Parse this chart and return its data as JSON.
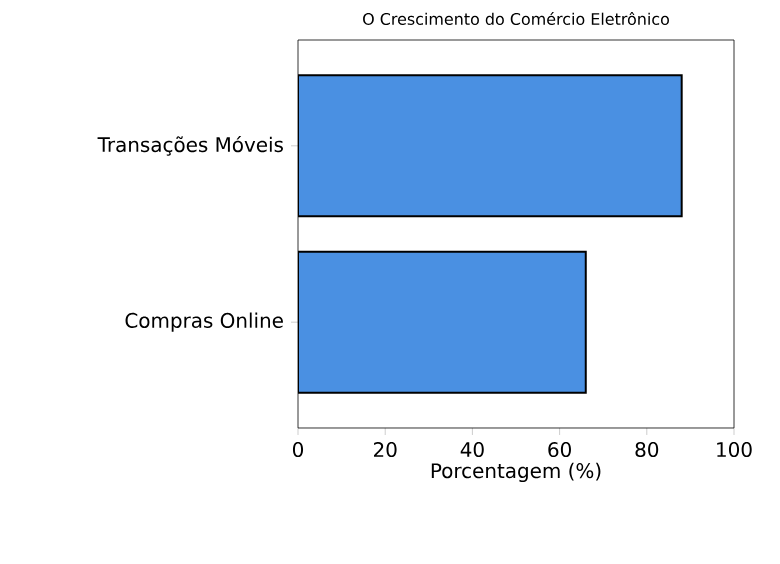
{
  "chart_data": {
    "type": "bar",
    "orientation": "horizontal",
    "title": "O Crescimento do Comércio Eletrônico",
    "xlabel": "Porcentagem (%)",
    "categories": [
      "Transações Móveis",
      "Compras Online"
    ],
    "values": [
      88,
      66
    ],
    "color": "#4a90e2",
    "xlim": [
      0,
      100
    ],
    "xticks": [
      0,
      20,
      40,
      60,
      80,
      100
    ]
  }
}
